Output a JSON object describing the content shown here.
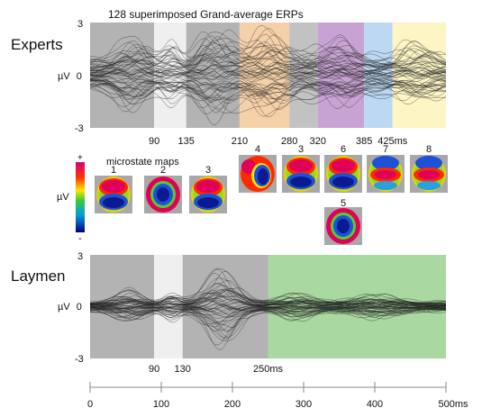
{
  "chart_data": {
    "type": "line",
    "title": "128 superimposed Grand-average ERPs",
    "subtitle_microstates": "microstate maps",
    "x_unit": "ms",
    "xlim": [
      0,
      500
    ],
    "x_ticks": [
      0,
      100,
      200,
      300,
      400,
      500
    ],
    "x_tick_labels": [
      "0",
      "100",
      "200",
      "300",
      "400",
      "500ms"
    ],
    "ylabel": "µV",
    "ylim": [
      -3,
      3
    ],
    "y_tick_labels": [
      "3",
      "0",
      "-3"
    ],
    "colorbar": {
      "label": "µV",
      "plus": "+",
      "minus": "-"
    },
    "panels": [
      {
        "name": "Experts",
        "series_count": 128,
        "segments": [
          {
            "start": 0,
            "end": 90,
            "color": "#b3b3b3"
          },
          {
            "start": 90,
            "end": 135,
            "color": "#efefef"
          },
          {
            "start": 135,
            "end": 210,
            "color": "#b3b3b3"
          },
          {
            "start": 210,
            "end": 280,
            "color": "#f5d0a8"
          },
          {
            "start": 280,
            "end": 320,
            "color": "#c2c2c2"
          },
          {
            "start": 320,
            "end": 385,
            "color": "#c7a3d3"
          },
          {
            "start": 385,
            "end": 425,
            "color": "#bcd8f2"
          },
          {
            "start": 425,
            "end": 500,
            "color": "#fdf5c4"
          }
        ],
        "boundary_labels": [
          "90",
          "135",
          "210",
          "280",
          "320",
          "385",
          "425ms"
        ],
        "boundary_values": [
          90,
          135,
          210,
          280,
          320,
          385,
          425
        ],
        "microstates": [
          {
            "label": "1",
            "pattern": "top-red-bottom-blue"
          },
          {
            "label": "2",
            "pattern": "center-blue"
          },
          {
            "label": "3",
            "pattern": "top-red-bottom-blue"
          },
          {
            "label": "4",
            "pattern": "right-blue"
          },
          {
            "label": "3",
            "pattern": "top-red-bottom-blue"
          },
          {
            "label": "6",
            "pattern": "top-red-bottom-blue"
          },
          {
            "label": "7",
            "pattern": "top-blue-mid-red"
          },
          {
            "label": "8",
            "pattern": "top-blue-mid-red"
          },
          {
            "label": "5",
            "pattern": "center-blue"
          }
        ]
      },
      {
        "name": "Laymen",
        "series_count": 128,
        "segments": [
          {
            "start": 0,
            "end": 90,
            "color": "#b3b3b3"
          },
          {
            "start": 90,
            "end": 130,
            "color": "#efefef"
          },
          {
            "start": 130,
            "end": 250,
            "color": "#b3b3b3"
          },
          {
            "start": 250,
            "end": 500,
            "color": "#a9d8a0"
          }
        ],
        "boundary_labels": [
          "90",
          "130",
          "250ms"
        ],
        "boundary_values": [
          90,
          130,
          250
        ]
      }
    ]
  }
}
